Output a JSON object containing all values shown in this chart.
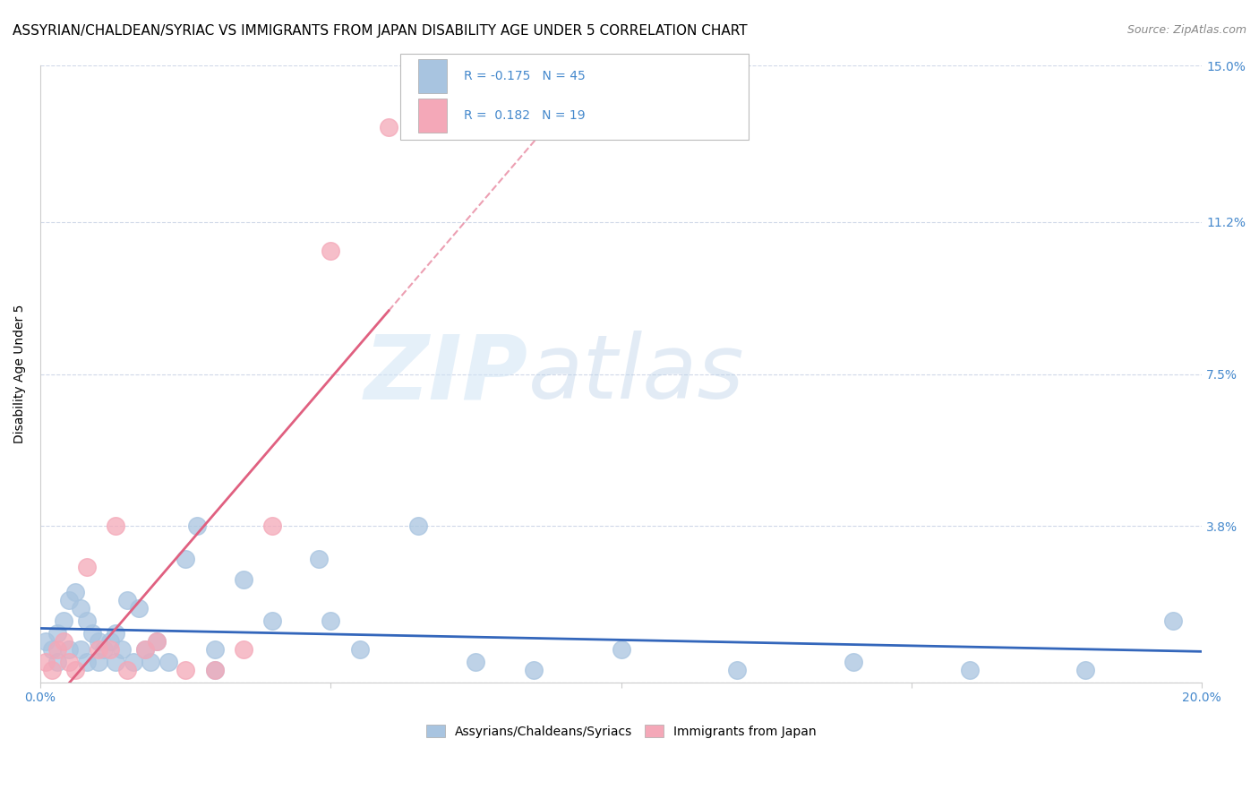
{
  "title": "ASSYRIAN/CHALDEAN/SYRIAC VS IMMIGRANTS FROM JAPAN DISABILITY AGE UNDER 5 CORRELATION CHART",
  "source": "Source: ZipAtlas.com",
  "ylabel": "Disability Age Under 5",
  "xlim": [
    0.0,
    0.2
  ],
  "ylim": [
    0.0,
    0.15
  ],
  "yticks": [
    0.0,
    0.038,
    0.075,
    0.112,
    0.15
  ],
  "yticklabels": [
    "",
    "3.8%",
    "7.5%",
    "11.2%",
    "15.0%"
  ],
  "blue_R": -0.175,
  "blue_N": 45,
  "pink_R": 0.182,
  "pink_N": 19,
  "blue_color": "#a8c4e0",
  "pink_color": "#f4a8b8",
  "blue_line_color": "#3366bb",
  "pink_line_color": "#e06080",
  "blue_scatter_x": [
    0.001,
    0.002,
    0.003,
    0.003,
    0.004,
    0.005,
    0.005,
    0.006,
    0.007,
    0.007,
    0.008,
    0.008,
    0.009,
    0.01,
    0.01,
    0.011,
    0.012,
    0.013,
    0.013,
    0.014,
    0.015,
    0.016,
    0.017,
    0.018,
    0.019,
    0.02,
    0.022,
    0.025,
    0.027,
    0.03,
    0.035,
    0.04,
    0.048,
    0.055,
    0.065,
    0.075,
    0.085,
    0.1,
    0.12,
    0.14,
    0.16,
    0.18,
    0.195,
    0.05,
    0.03
  ],
  "blue_scatter_y": [
    0.01,
    0.008,
    0.012,
    0.005,
    0.015,
    0.02,
    0.008,
    0.022,
    0.018,
    0.008,
    0.015,
    0.005,
    0.012,
    0.01,
    0.005,
    0.008,
    0.01,
    0.005,
    0.012,
    0.008,
    0.02,
    0.005,
    0.018,
    0.008,
    0.005,
    0.01,
    0.005,
    0.03,
    0.038,
    0.008,
    0.025,
    0.015,
    0.03,
    0.008,
    0.038,
    0.005,
    0.003,
    0.008,
    0.003,
    0.005,
    0.003,
    0.003,
    0.015,
    0.015,
    0.003
  ],
  "pink_scatter_x": [
    0.001,
    0.002,
    0.003,
    0.004,
    0.005,
    0.006,
    0.008,
    0.01,
    0.012,
    0.013,
    0.015,
    0.018,
    0.02,
    0.025,
    0.03,
    0.035,
    0.04,
    0.05,
    0.06
  ],
  "pink_scatter_y": [
    0.005,
    0.003,
    0.008,
    0.01,
    0.005,
    0.003,
    0.028,
    0.008,
    0.008,
    0.038,
    0.003,
    0.008,
    0.01,
    0.003,
    0.003,
    0.008,
    0.038,
    0.105,
    0.135
  ],
  "watermark_zip": "ZIP",
  "watermark_atlas": "atlas",
  "legend_label_blue": "Assyrians/Chaldeans/Syriacs",
  "legend_label_pink": "Immigrants from Japan",
  "title_fontsize": 11,
  "axis_label_fontsize": 10,
  "tick_fontsize": 10,
  "tick_color": "#4488cc",
  "grid_color": "#d0d8e8",
  "background_color": "#ffffff"
}
